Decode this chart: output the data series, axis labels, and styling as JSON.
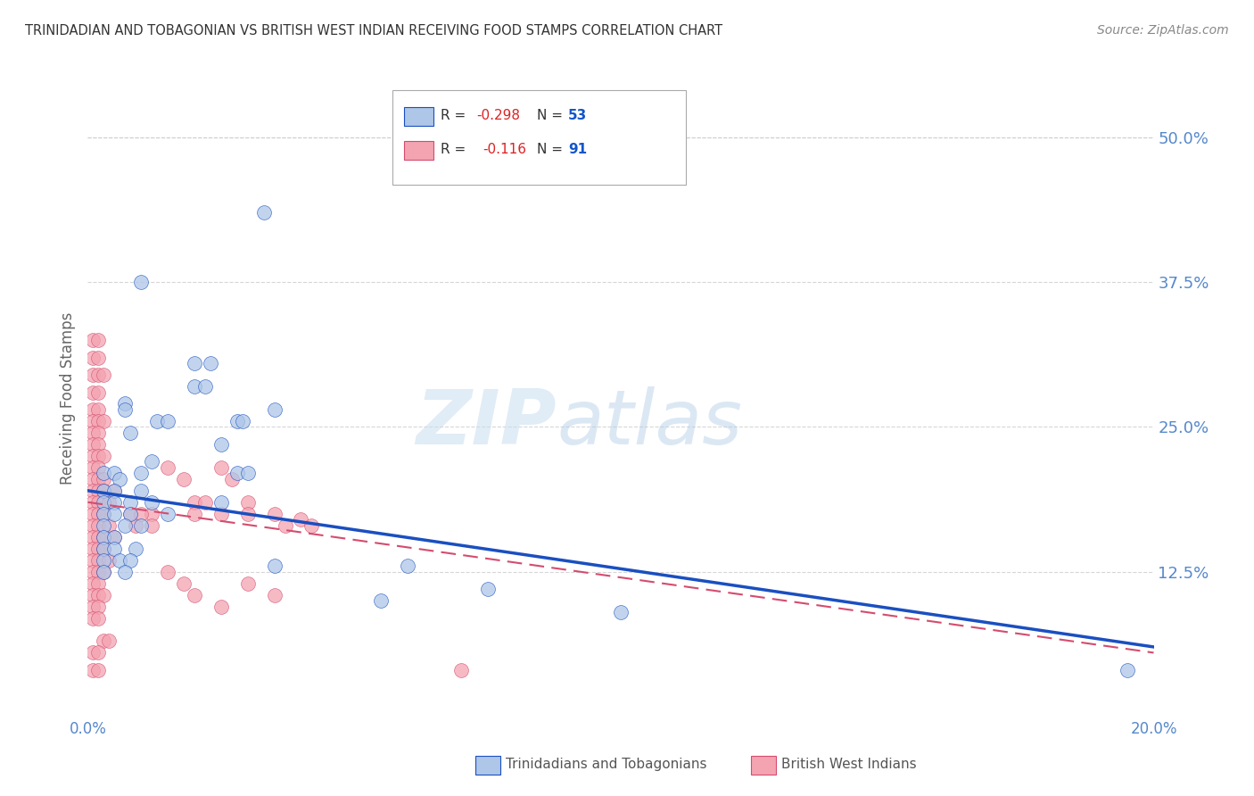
{
  "title": "TRINIDADIAN AND TOBAGONIAN VS BRITISH WEST INDIAN RECEIVING FOOD STAMPS CORRELATION CHART",
  "source": "Source: ZipAtlas.com",
  "ylabel": "Receiving Food Stamps",
  "ytick_labels": [
    "50.0%",
    "37.5%",
    "25.0%",
    "12.5%"
  ],
  "ytick_values": [
    0.5,
    0.375,
    0.25,
    0.125
  ],
  "xlim": [
    0.0,
    0.2
  ],
  "ylim": [
    0.0,
    0.55
  ],
  "legend1_color": "#aec6e8",
  "legend2_color": "#f4a3b0",
  "line1_color": "#1a4fc0",
  "line2_color": "#d44c6e",
  "grid_color": "#cccccc",
  "bg_color": "#ffffff",
  "title_color": "#333333",
  "axis_label_color": "#5588cc",
  "ytick_color": "#5588cc",
  "watermark_text": "ZIPatlas",
  "blue_dots": [
    [
      0.033,
      0.435
    ],
    [
      0.01,
      0.375
    ],
    [
      0.02,
      0.305
    ],
    [
      0.023,
      0.305
    ],
    [
      0.02,
      0.285
    ],
    [
      0.022,
      0.285
    ],
    [
      0.007,
      0.27
    ],
    [
      0.007,
      0.265
    ],
    [
      0.035,
      0.265
    ],
    [
      0.013,
      0.255
    ],
    [
      0.015,
      0.255
    ],
    [
      0.028,
      0.255
    ],
    [
      0.029,
      0.255
    ],
    [
      0.008,
      0.245
    ],
    [
      0.025,
      0.235
    ],
    [
      0.012,
      0.22
    ],
    [
      0.003,
      0.21
    ],
    [
      0.005,
      0.21
    ],
    [
      0.01,
      0.21
    ],
    [
      0.028,
      0.21
    ],
    [
      0.03,
      0.21
    ],
    [
      0.006,
      0.205
    ],
    [
      0.003,
      0.195
    ],
    [
      0.005,
      0.195
    ],
    [
      0.01,
      0.195
    ],
    [
      0.003,
      0.185
    ],
    [
      0.005,
      0.185
    ],
    [
      0.008,
      0.185
    ],
    [
      0.012,
      0.185
    ],
    [
      0.025,
      0.185
    ],
    [
      0.003,
      0.175
    ],
    [
      0.005,
      0.175
    ],
    [
      0.008,
      0.175
    ],
    [
      0.015,
      0.175
    ],
    [
      0.003,
      0.165
    ],
    [
      0.007,
      0.165
    ],
    [
      0.01,
      0.165
    ],
    [
      0.003,
      0.155
    ],
    [
      0.005,
      0.155
    ],
    [
      0.003,
      0.145
    ],
    [
      0.005,
      0.145
    ],
    [
      0.009,
      0.145
    ],
    [
      0.003,
      0.135
    ],
    [
      0.006,
      0.135
    ],
    [
      0.008,
      0.135
    ],
    [
      0.035,
      0.13
    ],
    [
      0.06,
      0.13
    ],
    [
      0.003,
      0.125
    ],
    [
      0.007,
      0.125
    ],
    [
      0.075,
      0.11
    ],
    [
      0.055,
      0.1
    ],
    [
      0.1,
      0.09
    ],
    [
      0.195,
      0.04
    ]
  ],
  "pink_dots": [
    [
      0.001,
      0.325
    ],
    [
      0.002,
      0.325
    ],
    [
      0.001,
      0.31
    ],
    [
      0.002,
      0.31
    ],
    [
      0.001,
      0.295
    ],
    [
      0.002,
      0.295
    ],
    [
      0.003,
      0.295
    ],
    [
      0.001,
      0.28
    ],
    [
      0.002,
      0.28
    ],
    [
      0.001,
      0.265
    ],
    [
      0.002,
      0.265
    ],
    [
      0.001,
      0.255
    ],
    [
      0.002,
      0.255
    ],
    [
      0.003,
      0.255
    ],
    [
      0.001,
      0.245
    ],
    [
      0.002,
      0.245
    ],
    [
      0.001,
      0.235
    ],
    [
      0.002,
      0.235
    ],
    [
      0.001,
      0.225
    ],
    [
      0.002,
      0.225
    ],
    [
      0.003,
      0.225
    ],
    [
      0.001,
      0.215
    ],
    [
      0.002,
      0.215
    ],
    [
      0.001,
      0.205
    ],
    [
      0.002,
      0.205
    ],
    [
      0.003,
      0.205
    ],
    [
      0.001,
      0.195
    ],
    [
      0.002,
      0.195
    ],
    [
      0.003,
      0.195
    ],
    [
      0.005,
      0.195
    ],
    [
      0.001,
      0.185
    ],
    [
      0.002,
      0.185
    ],
    [
      0.004,
      0.185
    ],
    [
      0.001,
      0.175
    ],
    [
      0.002,
      0.175
    ],
    [
      0.003,
      0.175
    ],
    [
      0.012,
      0.175
    ],
    [
      0.001,
      0.165
    ],
    [
      0.002,
      0.165
    ],
    [
      0.004,
      0.165
    ],
    [
      0.001,
      0.155
    ],
    [
      0.002,
      0.155
    ],
    [
      0.003,
      0.155
    ],
    [
      0.005,
      0.155
    ],
    [
      0.001,
      0.145
    ],
    [
      0.002,
      0.145
    ],
    [
      0.003,
      0.145
    ],
    [
      0.001,
      0.135
    ],
    [
      0.002,
      0.135
    ],
    [
      0.004,
      0.135
    ],
    [
      0.001,
      0.125
    ],
    [
      0.002,
      0.125
    ],
    [
      0.003,
      0.125
    ],
    [
      0.001,
      0.115
    ],
    [
      0.002,
      0.115
    ],
    [
      0.001,
      0.105
    ],
    [
      0.002,
      0.105
    ],
    [
      0.003,
      0.105
    ],
    [
      0.001,
      0.095
    ],
    [
      0.002,
      0.095
    ],
    [
      0.001,
      0.085
    ],
    [
      0.002,
      0.085
    ],
    [
      0.015,
      0.215
    ],
    [
      0.018,
      0.205
    ],
    [
      0.025,
      0.215
    ],
    [
      0.027,
      0.205
    ],
    [
      0.02,
      0.185
    ],
    [
      0.022,
      0.185
    ],
    [
      0.02,
      0.175
    ],
    [
      0.025,
      0.175
    ],
    [
      0.03,
      0.185
    ],
    [
      0.03,
      0.175
    ],
    [
      0.035,
      0.175
    ],
    [
      0.037,
      0.165
    ],
    [
      0.04,
      0.17
    ],
    [
      0.042,
      0.165
    ],
    [
      0.008,
      0.175
    ],
    [
      0.009,
      0.165
    ],
    [
      0.01,
      0.175
    ],
    [
      0.012,
      0.165
    ],
    [
      0.003,
      0.065
    ],
    [
      0.004,
      0.065
    ],
    [
      0.001,
      0.055
    ],
    [
      0.002,
      0.055
    ],
    [
      0.001,
      0.04
    ],
    [
      0.002,
      0.04
    ],
    [
      0.07,
      0.04
    ],
    [
      0.02,
      0.105
    ],
    [
      0.025,
      0.095
    ],
    [
      0.03,
      0.115
    ],
    [
      0.035,
      0.105
    ],
    [
      0.015,
      0.125
    ],
    [
      0.018,
      0.115
    ]
  ],
  "blue_line_x": [
    0.0,
    0.2
  ],
  "blue_line_y": [
    0.195,
    0.06
  ],
  "pink_line_x": [
    0.0,
    0.2
  ],
  "pink_line_y": [
    0.185,
    0.055
  ]
}
